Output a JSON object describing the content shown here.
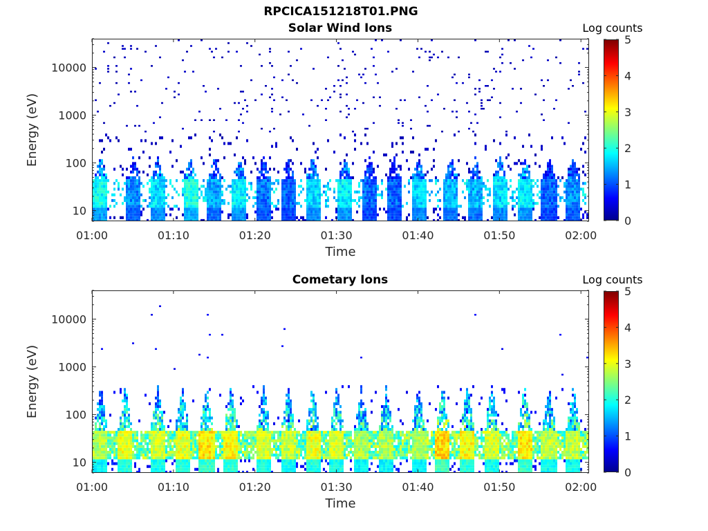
{
  "figure_title": "RPCICA151218T01.PNG",
  "chart_data": [
    {
      "type": "heatmap",
      "title": "Solar Wind Ions",
      "xlabel": "Time",
      "ylabel": "Energy (eV)",
      "x_range": [
        "01:00",
        "02:01"
      ],
      "x_ticks": [
        "01:00",
        "01:10",
        "01:20",
        "01:30",
        "01:40",
        "01:50",
        "02:00"
      ],
      "y_scale": "log",
      "y_range": [
        6,
        40000
      ],
      "y_ticks": [
        10,
        100,
        1000,
        10000
      ],
      "y_tick_labels": [
        "10",
        "100",
        "1000",
        "10000"
      ],
      "colorbar": {
        "label": "Log counts",
        "range": [
          0,
          5
        ],
        "ticks": [
          "0",
          "1",
          "2",
          "3",
          "4",
          "5"
        ],
        "colormap": "jet"
      },
      "low_energy_peak_log_counts": 2.2,
      "bursts": [
        {
          "t": "01:01",
          "peak_log_counts": 2.2
        },
        {
          "t": "01:05",
          "peak_log_counts": 1.6
        },
        {
          "t": "01:08",
          "peak_log_counts": 2.0
        },
        {
          "t": "01:12",
          "peak_log_counts": 2.3
        },
        {
          "t": "01:15",
          "peak_log_counts": 1.7
        },
        {
          "t": "01:18",
          "peak_log_counts": 2.1
        },
        {
          "t": "01:21",
          "peak_log_counts": 1.5
        },
        {
          "t": "01:24",
          "peak_log_counts": 1.4
        },
        {
          "t": "01:27",
          "peak_log_counts": 2.0
        },
        {
          "t": "01:31",
          "peak_log_counts": 2.1
        },
        {
          "t": "01:34",
          "peak_log_counts": 1.4
        },
        {
          "t": "01:37",
          "peak_log_counts": 1.4
        },
        {
          "t": "01:40",
          "peak_log_counts": 2.0
        },
        {
          "t": "01:44",
          "peak_log_counts": 1.8
        },
        {
          "t": "01:47",
          "peak_log_counts": 1.8
        },
        {
          "t": "01:50",
          "peak_log_counts": 2.0
        },
        {
          "t": "01:53",
          "peak_log_counts": 2.1
        },
        {
          "t": "01:56",
          "peak_log_counts": 1.4
        },
        {
          "t": "01:59",
          "peak_log_counts": 1.6
        }
      ],
      "scatter_level_log_counts": 0.2
    },
    {
      "type": "heatmap",
      "title": "Cometary Ions",
      "xlabel": "Time",
      "ylabel": "Energy (eV)",
      "x_range": [
        "01:00",
        "02:01"
      ],
      "x_ticks": [
        "01:00",
        "01:10",
        "01:20",
        "01:30",
        "01:40",
        "01:50",
        "02:00"
      ],
      "y_scale": "log",
      "y_range": [
        6,
        40000
      ],
      "y_ticks": [
        10,
        100,
        1000,
        10000
      ],
      "y_tick_labels": [
        "10",
        "100",
        "1000",
        "10000"
      ],
      "colorbar": {
        "label": "Log counts",
        "range": [
          0,
          5
        ],
        "ticks": [
          "0",
          "1",
          "2",
          "3",
          "4",
          "5"
        ],
        "colormap": "jet"
      },
      "low_energy_peak_log_counts": 3.2,
      "bursts": [
        {
          "t": "01:01",
          "peak_log_counts": 3.0
        },
        {
          "t": "01:04",
          "peak_log_counts": 3.3
        },
        {
          "t": "01:08",
          "peak_log_counts": 3.2
        },
        {
          "t": "01:11",
          "peak_log_counts": 3.3
        },
        {
          "t": "01:14",
          "peak_log_counts": 3.5
        },
        {
          "t": "01:17",
          "peak_log_counts": 3.4
        },
        {
          "t": "01:21",
          "peak_log_counts": 3.2
        },
        {
          "t": "01:24",
          "peak_log_counts": 3.1
        },
        {
          "t": "01:27",
          "peak_log_counts": 3.3
        },
        {
          "t": "01:30",
          "peak_log_counts": 3.2
        },
        {
          "t": "01:33",
          "peak_log_counts": 3.0
        },
        {
          "t": "01:36",
          "peak_log_counts": 3.0
        },
        {
          "t": "01:40",
          "peak_log_counts": 3.0
        },
        {
          "t": "01:43",
          "peak_log_counts": 3.6
        },
        {
          "t": "01:46",
          "peak_log_counts": 3.4
        },
        {
          "t": "01:49",
          "peak_log_counts": 3.2
        },
        {
          "t": "01:53",
          "peak_log_counts": 3.5
        },
        {
          "t": "01:56",
          "peak_log_counts": 3.1
        },
        {
          "t": "01:59",
          "peak_log_counts": 3.1
        }
      ],
      "scatter_level_log_counts": 0.5
    }
  ]
}
